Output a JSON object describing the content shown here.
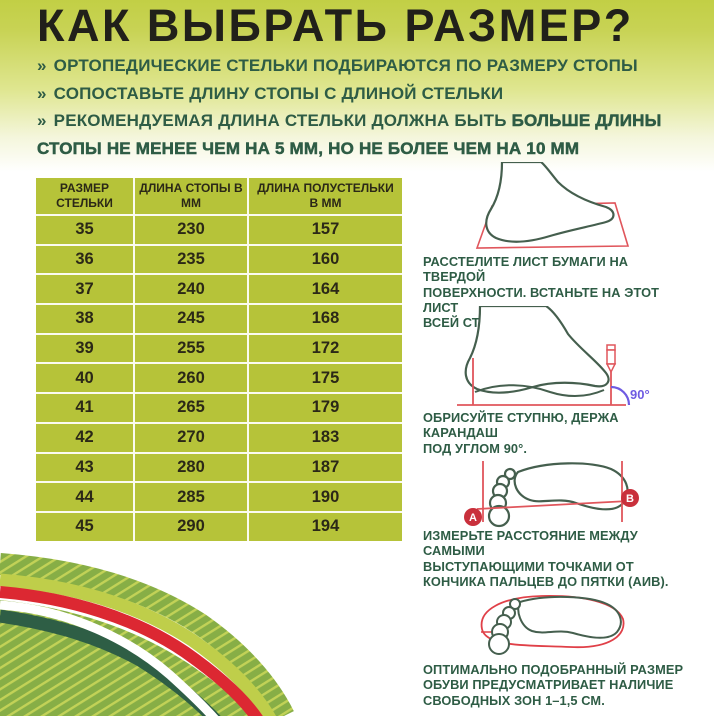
{
  "title": "КАК ВЫБРАТЬ РАЗМЕР?",
  "bullets": [
    {
      "marker": "»",
      "text": "ОРТОПЕДИЧЕСКИЕ СТЕЛЬКИ ПОДБИРАЮТСЯ ПО РАЗМЕРУ СТОПЫ"
    },
    {
      "marker": "»",
      "text": "СОПОСТАВЬТЕ ДЛИНУ СТОПЫ С ДЛИНОЙ СТЕЛЬКИ"
    },
    {
      "marker": "»",
      "text_head": "РЕКОМЕНДУЕМАЯ ДЛИНА СТЕЛЬКИ ДОЛЖНА БЫТЬ ",
      "text_strong": "БОЛЬШЕ ДЛИНЫ\nСТОПЫ НЕ МЕНЕЕ ЧЕМ НА 5 ММ, НО НЕ БОЛЕЕ ЧЕМ НА 10 ММ"
    }
  ],
  "size_table": {
    "headers": [
      "РАЗМЕР СТЕЛЬКИ",
      "ДЛИНА СТОПЫ В ММ",
      "ДЛИНА ПОЛУСТЕЛЬКИ В ММ"
    ],
    "rows": [
      [
        "35",
        "230",
        "157"
      ],
      [
        "36",
        "235",
        "160"
      ],
      [
        "37",
        "240",
        "164"
      ],
      [
        "38",
        "245",
        "168"
      ],
      [
        "39",
        "255",
        "172"
      ],
      [
        "40",
        "260",
        "175"
      ],
      [
        "41",
        "265",
        "179"
      ],
      [
        "42",
        "270",
        "183"
      ],
      [
        "43",
        "280",
        "187"
      ],
      [
        "44",
        "285",
        "190"
      ],
      [
        "45",
        "290",
        "194"
      ]
    ]
  },
  "steps": [
    {
      "icon": "foot-on-paper-icon",
      "caption": "РАССТЕЛИТЕ ЛИСТ БУМАГИ НА ТВЕРДОЙ\nПОВЕРХНОСТИ. ВСТАНЬТЕ НА ЭТОТ ЛИСТ\nВСЕЙ СТОПОЙ."
    },
    {
      "icon": "foot-pencil-90-icon",
      "caption": "ОБРИСУЙТЕ СТУПНЮ, ДЕРЖА КАРАНДАШ\nПОД УГЛОМ 90°.",
      "angle_label": "90°"
    },
    {
      "icon": "footprint-measure-icon",
      "caption": "ИЗМЕРЬТЕ РАССТОЯНИЕ МЕЖДУ САМЫМИ\nВЫСТУПАЮЩИМИ ТОЧКАМИ ОТ\nКОНЧИКА ПАЛЬЦЕВ ДО ПЯТКИ (АИВ).",
      "point_a": "А",
      "point_b": "В"
    },
    {
      "icon": "footprint-in-insole-icon",
      "caption": "ОПТИМАЛЬНО ПОДОБРАННЫЙ РАЗМЕР\nОБУВИ ПРЕДУСМАТРИВАЕТ НАЛИЧИЕ\nСВОБОДНЫХ ЗОН 1–1,5 СМ."
    }
  ],
  "palette": {
    "header_lime": "#c2cf45",
    "table_olive": "#b6c339",
    "dark_green_text": "#2e5c45",
    "outline_green": "#455f4e",
    "accent_red": "#e0565c",
    "badge_red": "#c9303c",
    "ribbon_red": "#dc2832",
    "angle_purple": "#6f5be2",
    "title_black": "#21201a"
  }
}
